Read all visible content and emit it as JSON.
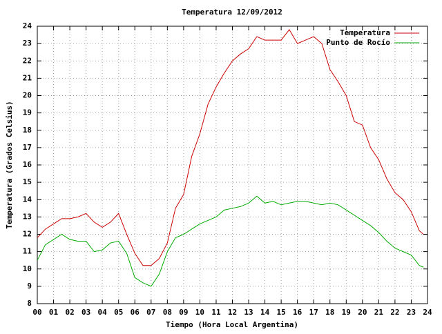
{
  "chart_data": {
    "type": "line",
    "title": "Temperatura 12/09/2012",
    "xlabel": "Tiempo (Hora Local Argentina)",
    "ylabel": "Temperatura (Grados Celsius)",
    "x": [
      0,
      0.5,
      1,
      1.5,
      2,
      2.5,
      3,
      3.5,
      4,
      4.5,
      5,
      5.5,
      6,
      6.5,
      7,
      7.5,
      8,
      8.5,
      9,
      9.5,
      10,
      10.5,
      11,
      11.5,
      12,
      12.5,
      13,
      13.5,
      14,
      14.5,
      15,
      15.5,
      16,
      16.5,
      17,
      17.5,
      18,
      18.5,
      19,
      19.5,
      20,
      20.5,
      21,
      21.5,
      22,
      22.5,
      23,
      23.5,
      23.75
    ],
    "series": [
      {
        "name": "Temperatura",
        "color": "#cc0000",
        "values": [
          11.8,
          12.3,
          12.6,
          12.9,
          12.9,
          13.0,
          13.2,
          12.7,
          12.4,
          12.7,
          13.2,
          12.0,
          10.9,
          10.2,
          10.2,
          10.6,
          11.5,
          13.5,
          14.3,
          16.5,
          17.8,
          19.5,
          20.5,
          21.3,
          22.0,
          22.4,
          22.7,
          23.4,
          23.2,
          23.2,
          23.2,
          23.8,
          23.0,
          23.2,
          23.4,
          23.0,
          21.5,
          20.8,
          20.0,
          18.5,
          18.3,
          17.0,
          16.3,
          15.2,
          14.4,
          14.0,
          13.3,
          12.2,
          12.0
        ]
      },
      {
        "name": "Punto de Rocío",
        "color": "#00aa00",
        "values": [
          10.5,
          11.4,
          11.7,
          12.0,
          11.7,
          11.6,
          11.6,
          11.0,
          11.1,
          11.5,
          11.6,
          10.9,
          9.5,
          9.2,
          9.0,
          9.7,
          11.0,
          11.8,
          12.0,
          12.3,
          12.6,
          12.8,
          13.0,
          13.4,
          13.5,
          13.6,
          13.8,
          14.2,
          13.8,
          13.9,
          13.7,
          13.8,
          13.9,
          13.9,
          13.8,
          13.7,
          13.8,
          13.7,
          13.4,
          13.1,
          12.8,
          12.5,
          12.1,
          11.6,
          11.2,
          11.0,
          10.8,
          10.2,
          10.1
        ]
      }
    ],
    "xlim": [
      0,
      24
    ],
    "xticks": [
      {
        "value": 0,
        "label": "00"
      },
      {
        "value": 1,
        "label": "01"
      },
      {
        "value": 2,
        "label": "02"
      },
      {
        "value": 3,
        "label": "03"
      },
      {
        "value": 4,
        "label": "04"
      },
      {
        "value": 5,
        "label": "05"
      },
      {
        "value": 6,
        "label": "06"
      },
      {
        "value": 7,
        "label": "07"
      },
      {
        "value": 8,
        "label": "08"
      },
      {
        "value": 9,
        "label": "09"
      },
      10,
      11,
      12,
      13,
      14,
      15,
      16,
      17,
      18,
      19,
      20,
      21,
      22,
      23,
      24
    ],
    "ylim": [
      8,
      24
    ],
    "yticks": [
      8,
      9,
      10,
      11,
      12,
      13,
      14,
      15,
      16,
      17,
      18,
      19,
      20,
      21,
      22,
      23,
      24
    ],
    "grid": true,
    "legend": "top-right"
  }
}
